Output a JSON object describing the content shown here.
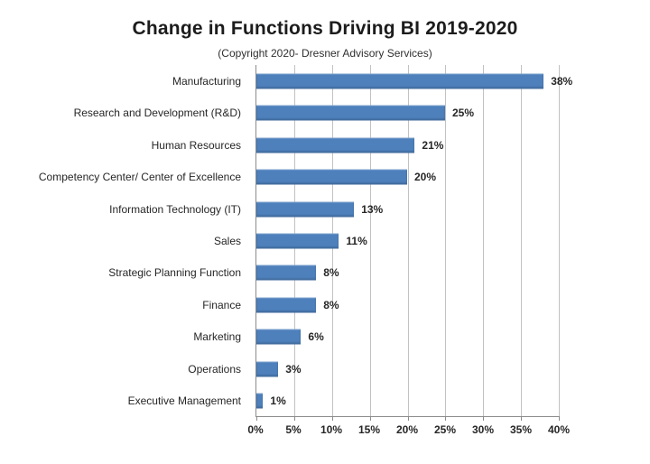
{
  "chart_data": {
    "type": "bar",
    "orientation": "horizontal",
    "title": "Change in Functions Driving BI 2019-2020",
    "subtitle": "(Copyright 2020- Dresner Advisory Services)",
    "categories": [
      "Manufacturing",
      "Research and Development (R&D)",
      "Human Resources",
      "Competency Center/ Center of Excellence",
      "Information Technology (IT)",
      "Sales",
      "Strategic Planning Function",
      "Finance",
      "Marketing",
      "Operations",
      "Executive Management"
    ],
    "values": [
      38,
      25,
      21,
      20,
      13,
      11,
      8,
      8,
      6,
      3,
      1
    ],
    "value_labels": [
      "38%",
      "25%",
      "21%",
      "20%",
      "13%",
      "11%",
      "8%",
      "8%",
      "6%",
      "3%",
      "1%"
    ],
    "xlabel": "",
    "ylabel": "",
    "xlim": [
      0,
      40
    ],
    "x_ticks": [
      "0%",
      "5%",
      "10%",
      "15%",
      "20%",
      "25%",
      "30%",
      "35%",
      "40%"
    ],
    "grid": true,
    "legend_position": "none",
    "colors": {
      "bar": "#4e80bc",
      "gridline": "#c2c2c2",
      "axis": "#8c8c8c",
      "text": "#262626"
    }
  }
}
